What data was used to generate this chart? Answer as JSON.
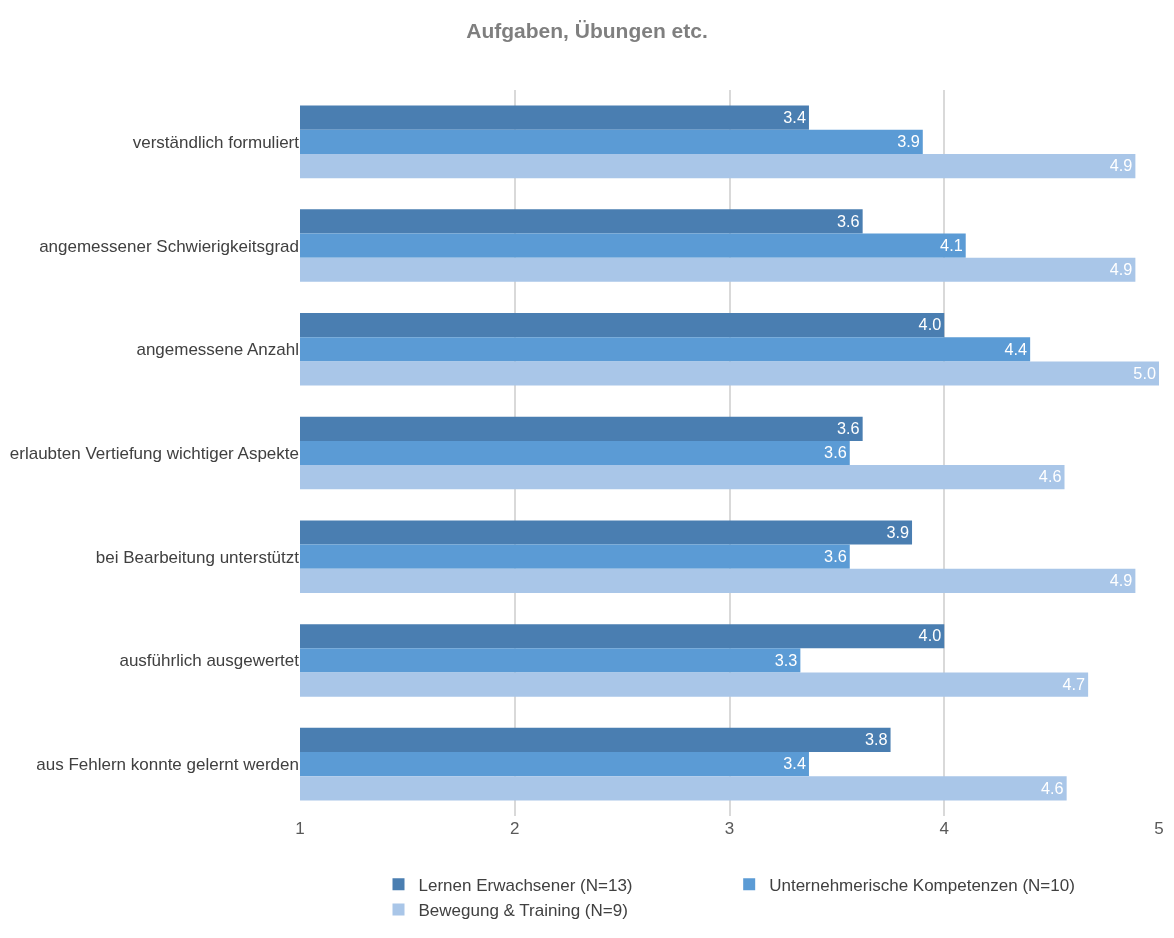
{
  "chart_data": {
    "type": "bar",
    "orientation": "horizontal",
    "title": "Aufgaben, Übungen etc.",
    "categories": [
      "verständlich formuliert",
      "angemessener Schwierigkeitsgrad",
      "angemessene Anzahl",
      "erlaubten Vertiefung wichtiger Aspekte",
      "bei Bearbeitung unterstützt",
      "ausführlich ausgewertet",
      "aus Fehlern konnte gelernt werden"
    ],
    "series": [
      {
        "name": "Lernen Erwachsener (N=13)",
        "color": "#4a7eb1",
        "values": [
          3.37,
          3.62,
          4.0,
          3.62,
          3.85,
          4.0,
          3.75
        ],
        "value_labels": [
          "3.4",
          "3.6",
          "4.0",
          "3.6",
          "3.9",
          "4.0",
          "3.8"
        ]
      },
      {
        "name": "Unternehmerische Kompetenzen (N=10)",
        "color": "#5b9bd5",
        "values": [
          3.9,
          4.1,
          4.4,
          3.56,
          3.56,
          3.33,
          3.37
        ],
        "value_labels": [
          "3.9",
          "4.1",
          "4.4",
          "3.6",
          "3.6",
          "3.3",
          "3.4"
        ]
      },
      {
        "name": "Bewegung & Training (N=9)",
        "color": "#a9c6e8",
        "values": [
          4.89,
          4.89,
          5.0,
          4.56,
          4.89,
          4.67,
          4.57
        ],
        "value_labels": [
          "4.9",
          "4.9",
          "5.0",
          "4.6",
          "4.9",
          "4.7",
          "4.6"
        ]
      }
    ],
    "xlim": [
      1,
      5
    ],
    "xticks": [
      1,
      2,
      3,
      4,
      5
    ],
    "grid": "x",
    "legend": "bottom"
  }
}
